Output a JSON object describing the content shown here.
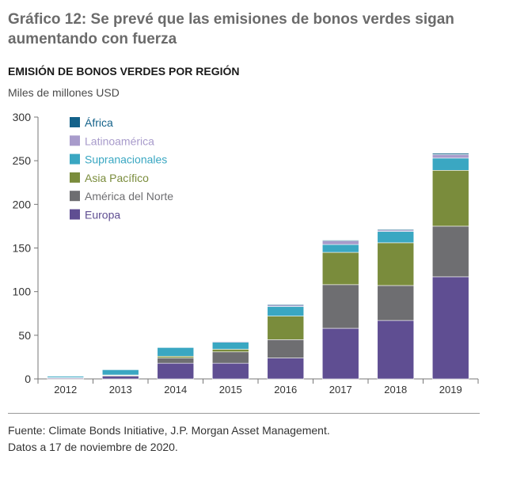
{
  "header": {
    "title": "Gráfico 12: Se prevé que las emisiones de bonos verdes sigan aumentando con fuerza",
    "subtitle": "EMISIÓN DE BONOS VERDES POR REGIÓN",
    "unit": "Miles de millones USD"
  },
  "footer": {
    "source": "Fuente: Climate Bonds Initiative, J.P. Morgan Asset Management.",
    "date_note": "Datos a 17 de noviembre de 2020."
  },
  "chart_data": {
    "type": "bar",
    "stacked": true,
    "title": "EMISIÓN DE BONOS VERDES POR REGIÓN",
    "ylabel": "Miles de millones USD",
    "xlabel": "",
    "ylim": [
      0,
      300
    ],
    "yticks": [
      0,
      50,
      100,
      150,
      200,
      250,
      300
    ],
    "grid": false,
    "legend_position": "top-left",
    "categories": [
      "2012",
      "2013",
      "2014",
      "2015",
      "2016",
      "2017",
      "2018",
      "2019"
    ],
    "series": [
      {
        "name": "Europa",
        "color": "#5f4e92",
        "values": [
          1,
          3,
          18,
          18,
          24,
          58,
          67,
          117
        ]
      },
      {
        "name": "América del Norte",
        "color": "#6e6e71",
        "values": [
          0.5,
          1,
          6,
          13,
          21,
          50,
          40,
          58
        ]
      },
      {
        "name": "Asia Pacífico",
        "color": "#7a8c3c",
        "values": [
          0,
          0.5,
          2,
          3,
          27,
          37,
          49,
          64
        ]
      },
      {
        "name": "Supranacionales",
        "color": "#3aa7c2",
        "values": [
          1.5,
          6,
          10,
          8,
          11,
          9,
          13,
          14
        ]
      },
      {
        "name": "Latinoamérica",
        "color": "#a89bcb",
        "values": [
          0,
          0,
          0.5,
          1,
          1.5,
          4,
          1.5,
          4
        ]
      },
      {
        "name": "África",
        "color": "#14628a",
        "values": [
          0,
          0,
          0.5,
          0.5,
          1,
          1,
          1,
          1.5
        ]
      }
    ]
  }
}
